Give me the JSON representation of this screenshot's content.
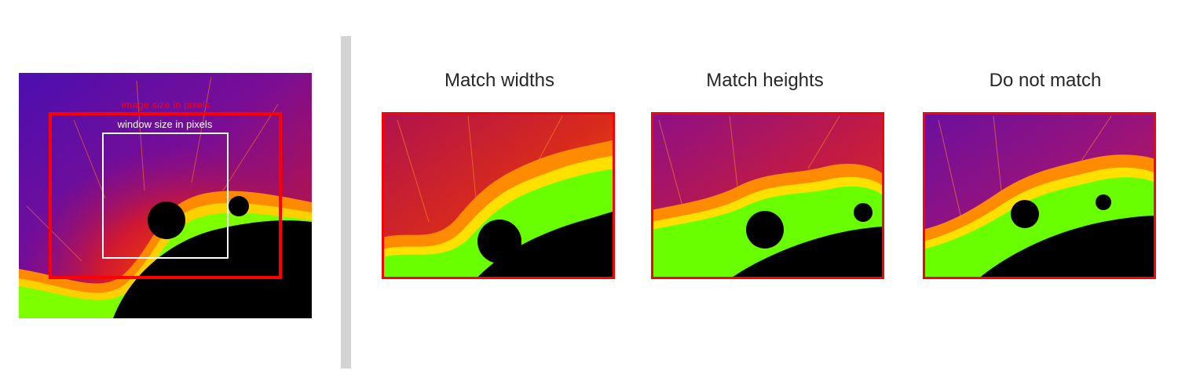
{
  "overview": {
    "image_label": "image size in pixels",
    "window_label": "window size in pixels"
  },
  "panels": [
    {
      "title": "Match widths"
    },
    {
      "title": "Match heights"
    },
    {
      "title": "Do not match"
    }
  ],
  "colors": {
    "image_box": "#ff0000",
    "window_box": "#ffffff",
    "divider": "#d3d3d3",
    "fractal_interior": "#000000",
    "fractal_palette": [
      "#5b0fa8",
      "#8a0f8a",
      "#c21a3a",
      "#ff3a00",
      "#ff9a00",
      "#ffff00",
      "#7dff00",
      "#00ff80"
    ]
  }
}
